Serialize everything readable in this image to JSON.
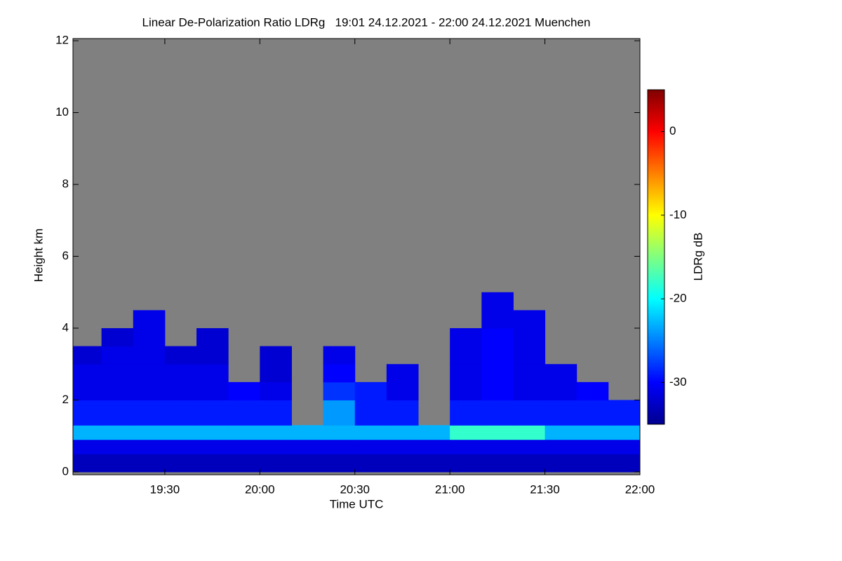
{
  "chart_data": {
    "type": "heatmap",
    "title": "Linear De-Polarization Ratio LDRg   19:01 24.12.2021 - 22:00 24.12.2021 Muenchen",
    "xlabel": "Time UTC",
    "ylabel": "Height km",
    "colorbar_label": "LDRg dB",
    "x": [
      19.0167,
      19.1667,
      19.3333,
      19.5,
      19.6667,
      19.8333,
      20.0,
      20.1667,
      20.3333,
      20.5,
      20.6667,
      20.8333,
      21.0,
      21.1667,
      21.3333,
      21.5,
      21.6667,
      21.8333,
      22.0
    ],
    "y": [
      0,
      0.5,
      0.9,
      1.3,
      2.0,
      2.5,
      3.0,
      3.5,
      4.0,
      4.5,
      5.0
    ],
    "z": [
      [
        -33,
        -33,
        -33,
        -33,
        -33,
        -33,
        -33,
        -33,
        -33,
        -33,
        -33,
        -33,
        -33,
        -33,
        -33,
        -33,
        -33,
        -33
      ],
      [
        -31,
        -31,
        -31,
        -31,
        -31,
        -31,
        -31,
        -31,
        -31,
        -31,
        -31,
        -31,
        -31,
        -31,
        -31,
        -31,
        -31,
        -31
      ],
      [
        -23,
        -23,
        -23,
        -23,
        -23,
        -23,
        -23,
        -23,
        -23,
        -23,
        -23,
        -23,
        -18,
        -18,
        -18,
        -23,
        -23,
        -23
      ],
      [
        -29,
        -29,
        -29,
        -29,
        -29,
        -29,
        -29,
        null,
        -24,
        -29,
        -29,
        null,
        -29,
        -29,
        -29,
        -29,
        -29,
        -29
      ],
      [
        -31,
        -31,
        -31,
        -31,
        -31,
        -30,
        -31,
        null,
        -28,
        -29,
        -31,
        null,
        -31,
        -30,
        -31,
        -31,
        -30,
        null
      ],
      [
        -31,
        -31,
        -31,
        -31,
        -31,
        null,
        -32,
        null,
        -30,
        null,
        -31,
        null,
        -31,
        -30,
        -31,
        -31,
        null,
        null
      ],
      [
        -32,
        -31,
        -31,
        -32,
        -32,
        null,
        -32,
        null,
        -31,
        null,
        null,
        null,
        -31,
        -30,
        -31,
        null,
        null,
        null
      ],
      [
        null,
        -32,
        -31,
        null,
        -32,
        null,
        null,
        null,
        null,
        null,
        null,
        null,
        -31,
        -30,
        -31,
        null,
        null,
        null
      ],
      [
        null,
        null,
        -31,
        null,
        null,
        null,
        null,
        null,
        null,
        null,
        null,
        null,
        null,
        -31,
        -31,
        null,
        null,
        null
      ],
      [
        null,
        null,
        null,
        null,
        null,
        null,
        null,
        null,
        null,
        null,
        null,
        null,
        null,
        -31,
        null,
        null,
        null,
        null
      ]
    ],
    "xlim": [
      19.0167,
      22.0
    ],
    "ylim": [
      -0.08,
      12.06
    ],
    "zlim": [
      -35,
      5
    ],
    "xticks": [
      {
        "value": 19.5,
        "label": "19:30"
      },
      {
        "value": 20.0,
        "label": "20:00"
      },
      {
        "value": 20.5,
        "label": "20:30"
      },
      {
        "value": 21.0,
        "label": "21:00"
      },
      {
        "value": 21.5,
        "label": "21:30"
      },
      {
        "value": 22.0,
        "label": "22:00"
      }
    ],
    "yticks": [
      0,
      2,
      4,
      6,
      8,
      10,
      12
    ],
    "zticks": [
      -30,
      -20,
      -10,
      0
    ],
    "colorscale": [
      "#00008f",
      "#0000ff",
      "#0080ff",
      "#00ffff",
      "#80ff80",
      "#ffff00",
      "#ff8000",
      "#ff0000",
      "#800000"
    ],
    "background": "#808080"
  }
}
